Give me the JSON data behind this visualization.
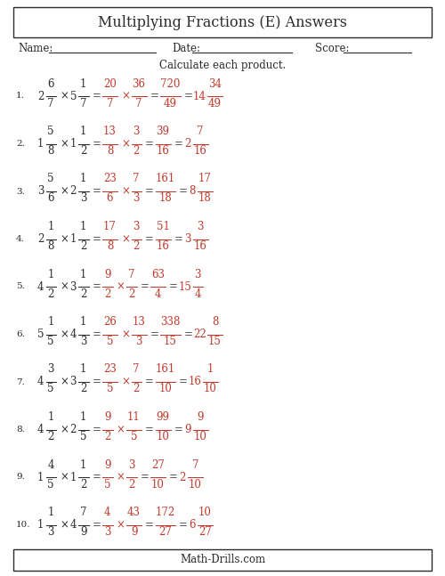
{
  "title": "Multiplying Fractions (E) Answers",
  "name_label": "Name:",
  "date_label": "Date:",
  "score_label": "Score:",
  "instruction": "Calculate each product.",
  "footer": "Math-Drills.com",
  "problems": [
    {
      "num": "1.",
      "m1w": "2",
      "m1n": "6",
      "m1d": "7",
      "m2w": "5",
      "m2n": "1",
      "m2d": "7",
      "i1n": "20",
      "i1d": "7",
      "i2n": "36",
      "i2d": "7",
      "pn": "720",
      "pd": "49",
      "aw": "14",
      "an": "34",
      "ad": "49"
    },
    {
      "num": "2.",
      "m1w": "1",
      "m1n": "5",
      "m1d": "8",
      "m2w": "1",
      "m2n": "1",
      "m2d": "2",
      "i1n": "13",
      "i1d": "8",
      "i2n": "3",
      "i2d": "2",
      "pn": "39",
      "pd": "16",
      "aw": "2",
      "an": "7",
      "ad": "16"
    },
    {
      "num": "3.",
      "m1w": "3",
      "m1n": "5",
      "m1d": "6",
      "m2w": "2",
      "m2n": "1",
      "m2d": "3",
      "i1n": "23",
      "i1d": "6",
      "i2n": "7",
      "i2d": "3",
      "pn": "161",
      "pd": "18",
      "aw": "8",
      "an": "17",
      "ad": "18"
    },
    {
      "num": "4.",
      "m1w": "2",
      "m1n": "1",
      "m1d": "8",
      "m2w": "1",
      "m2n": "1",
      "m2d": "2",
      "i1n": "17",
      "i1d": "8",
      "i2n": "3",
      "i2d": "2",
      "pn": "51",
      "pd": "16",
      "aw": "3",
      "an": "3",
      "ad": "16"
    },
    {
      "num": "5.",
      "m1w": "4",
      "m1n": "1",
      "m1d": "2",
      "m2w": "3",
      "m2n": "1",
      "m2d": "2",
      "i1n": "9",
      "i1d": "2",
      "i2n": "7",
      "i2d": "2",
      "pn": "63",
      "pd": "4",
      "aw": "15",
      "an": "3",
      "ad": "4"
    },
    {
      "num": "6.",
      "m1w": "5",
      "m1n": "1",
      "m1d": "5",
      "m2w": "4",
      "m2n": "1",
      "m2d": "3",
      "i1n": "26",
      "i1d": "5",
      "i2n": "13",
      "i2d": "3",
      "pn": "338",
      "pd": "15",
      "aw": "22",
      "an": "8",
      "ad": "15"
    },
    {
      "num": "7.",
      "m1w": "4",
      "m1n": "3",
      "m1d": "5",
      "m2w": "3",
      "m2n": "1",
      "m2d": "2",
      "i1n": "23",
      "i1d": "5",
      "i2n": "7",
      "i2d": "2",
      "pn": "161",
      "pd": "10",
      "aw": "16",
      "an": "1",
      "ad": "10"
    },
    {
      "num": "8.",
      "m1w": "4",
      "m1n": "1",
      "m1d": "2",
      "m2w": "2",
      "m2n": "1",
      "m2d": "5",
      "i1n": "9",
      "i1d": "2",
      "i2n": "11",
      "i2d": "5",
      "pn": "99",
      "pd": "10",
      "aw": "9",
      "an": "9",
      "ad": "10"
    },
    {
      "num": "9.",
      "m1w": "1",
      "m1n": "4",
      "m1d": "5",
      "m2w": "1",
      "m2n": "1",
      "m2d": "2",
      "i1n": "9",
      "i1d": "5",
      "i2n": "3",
      "i2d": "2",
      "pn": "27",
      "pd": "10",
      "aw": "2",
      "an": "7",
      "ad": "10"
    },
    {
      "num": "10.",
      "m1w": "1",
      "m1n": "1",
      "m1d": "3",
      "m2w": "4",
      "m2n": "7",
      "m2d": "9",
      "i1n": "4",
      "i1d": "3",
      "i2n": "43",
      "i2d": "9",
      "pn": "172",
      "pd": "27",
      "aw": "6",
      "an": "10",
      "ad": "27"
    }
  ],
  "black_color": "#2b2b2b",
  "red_color": "#c0392b",
  "bg_color": "#ffffff"
}
